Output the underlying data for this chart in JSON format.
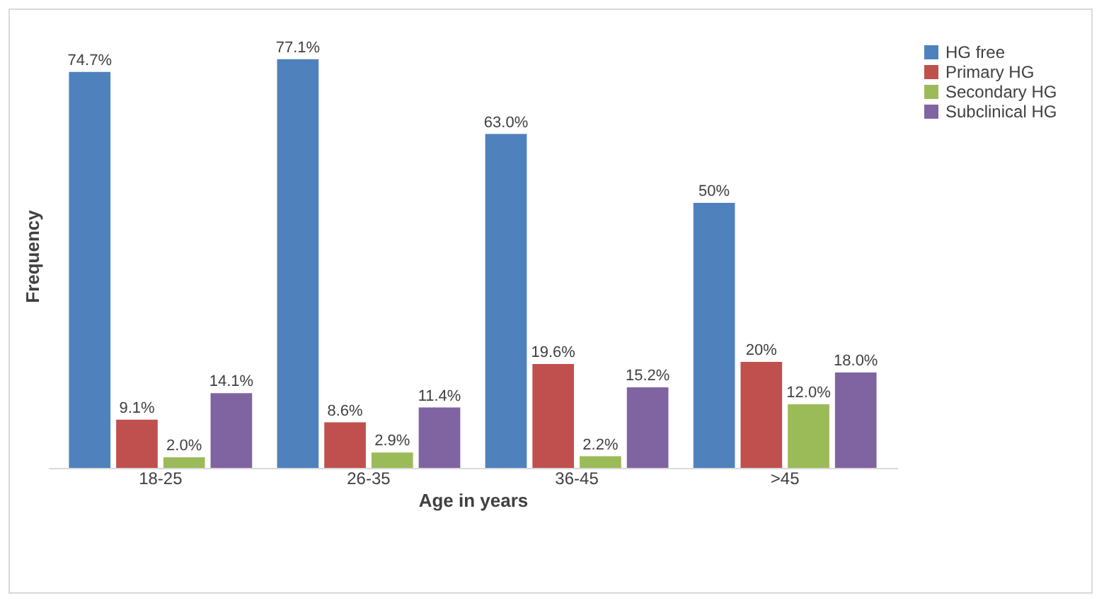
{
  "chart_data": {
    "type": "bar",
    "xlabel": "Age in years",
    "ylabel": "Frequency",
    "categories": [
      "18-25",
      "26-35",
      "36-45",
      ">45"
    ],
    "series": [
      {
        "name": "HG free",
        "color": "#4f81bd",
        "values": [
          74.7,
          77.1,
          63.0,
          50
        ],
        "value_labels": [
          "74.7%",
          "77.1%",
          "63.0%",
          "50%"
        ]
      },
      {
        "name": "Primary HG",
        "color": "#c0504d",
        "values": [
          9.1,
          8.6,
          19.6,
          20
        ],
        "value_labels": [
          "9.1%",
          "8.6%",
          "19.6%",
          "20%"
        ]
      },
      {
        "name": "Secondary HG",
        "color": "#9bbb59",
        "values": [
          2.0,
          2.9,
          2.2,
          12.0
        ],
        "value_labels": [
          "2.0%",
          "2.9%",
          "2.2%",
          "12.0%"
        ]
      },
      {
        "name": "Subclinical HG",
        "color": "#8064a2",
        "values": [
          14.1,
          11.4,
          15.2,
          18.0
        ],
        "value_labels": [
          "14.1%",
          "11.4%",
          "15.2%",
          "18.0%"
        ]
      }
    ],
    "legend": "top right",
    "grid": false,
    "tick_labels": "x"
  }
}
